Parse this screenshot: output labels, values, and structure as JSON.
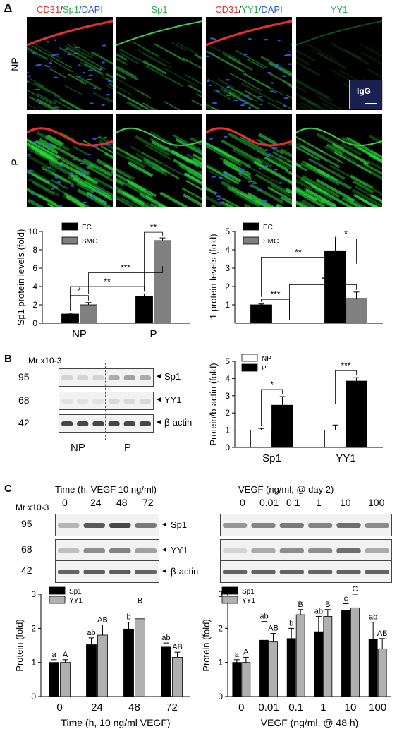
{
  "panelA": {
    "letter": "A",
    "headers": [
      {
        "parts": [
          {
            "t": "CD31",
            "c": "red"
          },
          {
            "t": "/",
            "c": "k"
          },
          {
            "t": "Sp1",
            "c": "grn"
          },
          {
            "t": "/DAPI",
            "c": "blu"
          }
        ]
      },
      {
        "parts": [
          {
            "t": "Sp1",
            "c": "grn"
          }
        ]
      },
      {
        "parts": [
          {
            "t": "CD31",
            "c": "red"
          },
          {
            "t": "/",
            "c": "k"
          },
          {
            "t": "YY1",
            "c": "grn"
          },
          {
            "t": "/DAPI",
            "c": "blu"
          }
        ]
      },
      {
        "parts": [
          {
            "t": "YY1",
            "c": "grn"
          }
        ]
      }
    ],
    "row_np": "NP",
    "row_p": "P",
    "igg": "IgG"
  },
  "panelB": {
    "letter": "B",
    "mr": "Mr x10-3",
    "markers": [
      "95",
      "68",
      "42"
    ],
    "bands": [
      "Sp1",
      "YY1",
      "β-actin"
    ],
    "groups": [
      "NP",
      "P"
    ]
  },
  "panelC": {
    "letter": "C",
    "left_title": "Time (h, VEGF 10 ng/ml)",
    "left_lanes": [
      "0",
      "24",
      "48",
      "72"
    ],
    "right_title": "VEGF (ng/ml, @ day 2)",
    "right_lanes": [
      "0",
      "0.01",
      "0.1",
      "1",
      "10",
      "100"
    ],
    "mr": "Mr x10-3",
    "markers": [
      "95",
      "68",
      "42"
    ],
    "bands": [
      "Sp1",
      "YY1",
      "β-actin"
    ]
  },
  "chart_data": [
    {
      "id": "A1",
      "type": "bar",
      "ylabel": "Sp1 protein levels (fold)",
      "categories": [
        "NP",
        "P"
      ],
      "ylim": [
        0,
        10
      ],
      "yticks": [
        "0",
        "2",
        "4",
        "6",
        "8",
        "10"
      ],
      "series": [
        {
          "name": "EC",
          "values": [
            1.0,
            2.9
          ],
          "errors": [
            0.1,
            0.3
          ],
          "color": "#000000"
        },
        {
          "name": "SMC",
          "values": [
            2.0,
            9.0
          ],
          "errors": [
            0.25,
            0.3
          ],
          "color": "#808080"
        }
      ],
      "significance": [
        "*",
        "**",
        "***",
        "**"
      ]
    },
    {
      "id": "A2",
      "type": "bar",
      "ylabel": "'1 protein levels (fold)",
      "categories": [
        "",
        ""
      ],
      "ylim": [
        0,
        5
      ],
      "yticks": [
        "1",
        "2",
        "3",
        "4",
        "5"
      ],
      "series": [
        {
          "name": "EC",
          "values": [
            1.0,
            3.95
          ],
          "errors": [
            0.05,
            0.65
          ],
          "color": "#000000"
        },
        {
          "name": "SMC",
          "values": [
            0.0,
            1.35
          ],
          "errors": [
            0,
            0.35
          ],
          "color": "#808080"
        }
      ],
      "significance": [
        "***",
        "**",
        "*",
        "*"
      ]
    },
    {
      "id": "B",
      "type": "bar",
      "ylabel": "Protein/b-actin (fold)",
      "categories": [
        "Sp1",
        "YY1"
      ],
      "ylim": [
        0,
        5
      ],
      "yticks": [
        "0",
        "1",
        "2",
        "3",
        "4",
        "5"
      ],
      "series": [
        {
          "name": "NP",
          "values": [
            1.0,
            1.0
          ],
          "errors": [
            0.1,
            0.3
          ],
          "color": "#ffffff"
        },
        {
          "name": "P",
          "values": [
            2.45,
            3.85
          ],
          "errors": [
            0.5,
            0.2
          ],
          "color": "#000000"
        }
      ],
      "significance": [
        "*",
        "***"
      ]
    },
    {
      "id": "C1",
      "type": "bar",
      "ylabel": "Protein (fold)",
      "xlabel": "Time (h, 10 ng/ml VEGF)",
      "categories": [
        "0",
        "24",
        "48",
        "72"
      ],
      "ylim": [
        0,
        3
      ],
      "yticks": [
        "0",
        "1",
        "2",
        "3"
      ],
      "series": [
        {
          "name": "Sp1",
          "values": [
            1.0,
            1.52,
            1.98,
            1.45
          ],
          "errors": [
            0.08,
            0.2,
            0.2,
            0.12
          ],
          "color": "#000000"
        },
        {
          "name": "YY1",
          "values": [
            1.0,
            1.8,
            2.28,
            1.15
          ],
          "errors": [
            0.08,
            0.3,
            0.38,
            0.15
          ],
          "color": "#b0b0b0"
        }
      ],
      "letters": [
        [
          "a",
          "A"
        ],
        [
          "ab",
          "AB"
        ],
        [
          "b",
          "B"
        ],
        [
          "ab",
          "AB"
        ]
      ]
    },
    {
      "id": "C2",
      "type": "bar",
      "ylabel": "Protein (fold)",
      "xlabel": "VEGF (ng/ml, @ 48 h)",
      "categories": [
        "0",
        "0.01",
        "0.1",
        "1",
        "10",
        "100"
      ],
      "ylim": [
        0,
        3
      ],
      "yticks": [
        "0",
        "1",
        "2",
        "3"
      ],
      "series": [
        {
          "name": "Sp1",
          "values": [
            1.0,
            1.65,
            1.7,
            1.9,
            2.52,
            1.68
          ],
          "errors": [
            0.08,
            0.55,
            0.3,
            0.45,
            0.2,
            0.5
          ],
          "color": "#000000"
        },
        {
          "name": "YY1",
          "values": [
            1.0,
            1.6,
            2.4,
            2.35,
            2.6,
            1.4
          ],
          "errors": [
            0.15,
            0.25,
            0.15,
            0.2,
            0.4,
            0.3
          ],
          "color": "#b0b0b0"
        }
      ],
      "letters": [
        [
          "a",
          "A"
        ],
        [
          "ab",
          "AB"
        ],
        [
          "b",
          "B"
        ],
        [
          "ab",
          "B"
        ],
        [
          "c",
          "C"
        ],
        [
          "ab",
          "AB"
        ]
      ]
    }
  ]
}
